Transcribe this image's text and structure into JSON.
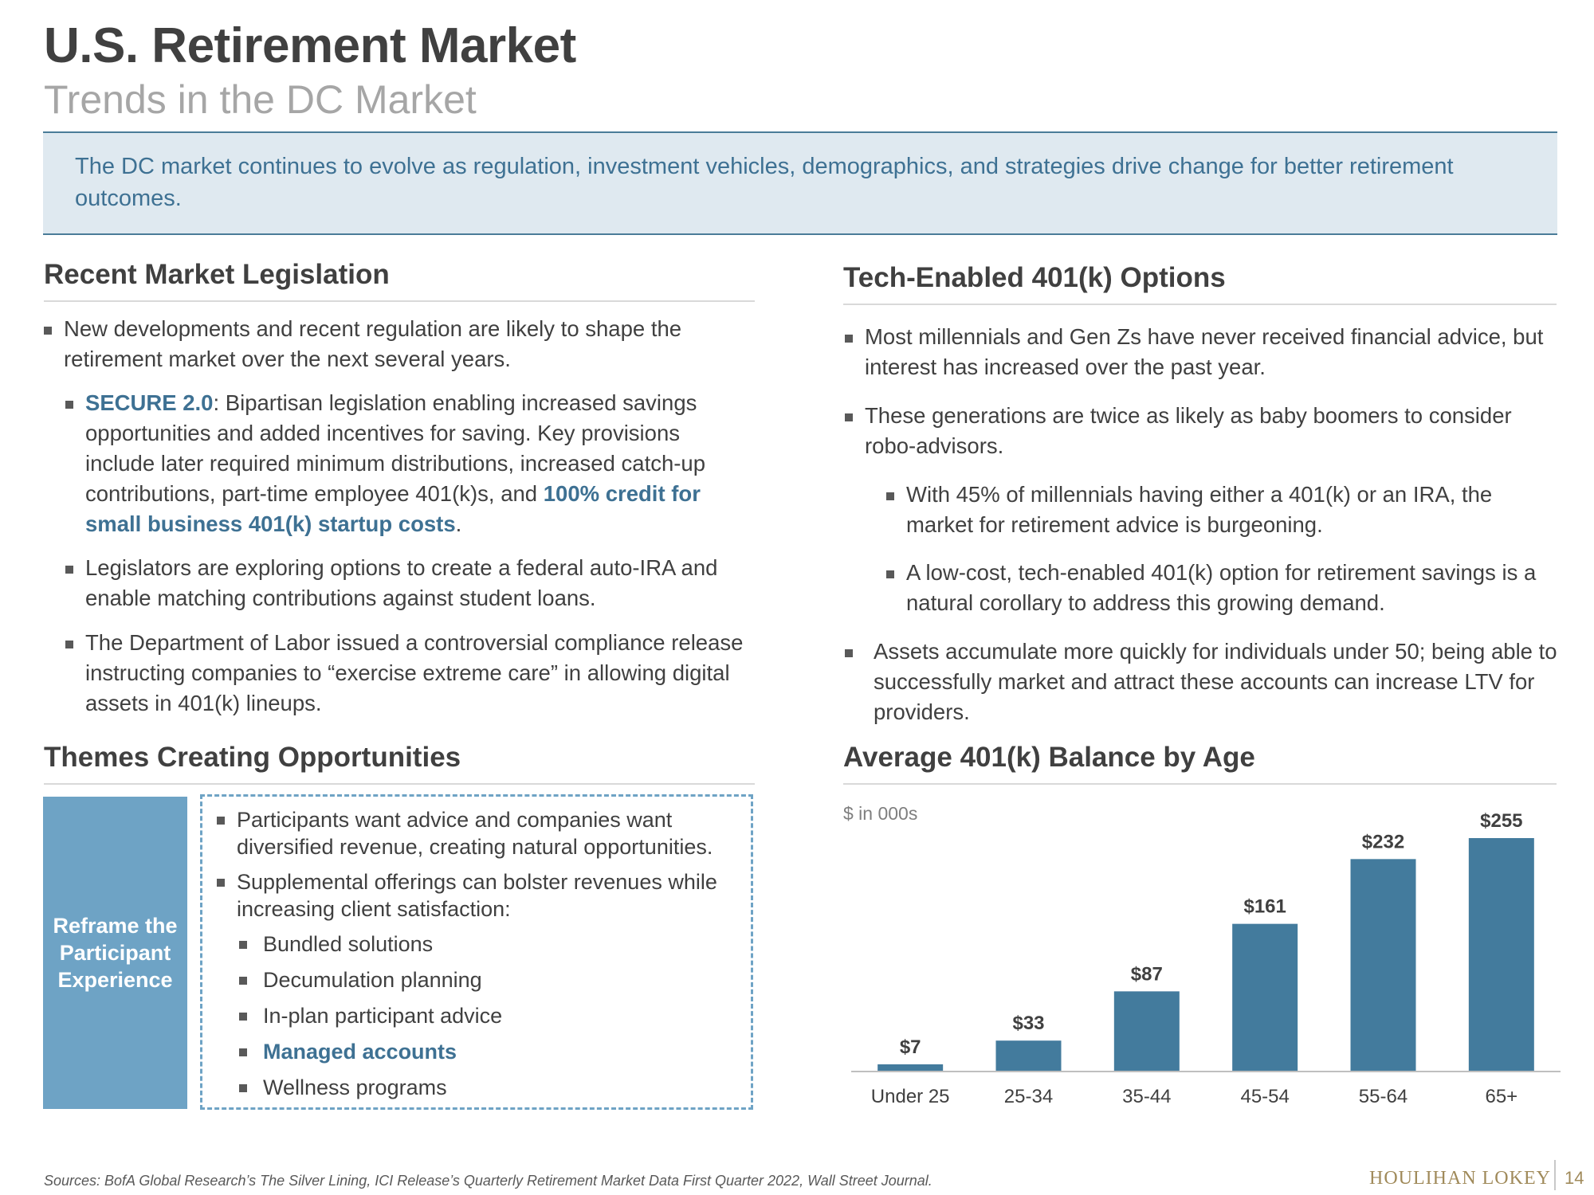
{
  "header": {
    "title": "U.S. Retirement Market",
    "subtitle": "Trends in the DC Market"
  },
  "banner": {
    "text": "The DC market continues to evolve as regulation, investment vehicles, demographics, and strategies drive change for better retirement outcomes."
  },
  "legislation": {
    "heading": "Recent Market Legislation",
    "b1": "New developments and recent regulation are likely to shape the retirement market over the next several years.",
    "b2_hl": "SECURE 2.0",
    "b2_text": ": Bipartisan legislation enabling increased savings opportunities and added incentives for saving. Key provisions include later required minimum distributions, increased catch-up contributions, part-time employee 401(k)s, and ",
    "b2_hl2": "100% credit for small business 401(k) startup costs",
    "b2_end": ".",
    "b3": "Legislators are exploring options to create a federal auto-IRA and enable matching contributions against student loans.",
    "b4": "The Department of Labor issued a controversial compliance release instructing companies to “exercise extreme care” in allowing digital assets in 401(k) lineups."
  },
  "tech": {
    "heading": "Tech-Enabled 401(k) Options",
    "b1": "Most millennials and Gen Zs have never received financial advice, but interest has increased over the past year.",
    "b2": "These generations are twice as likely as baby boomers to consider robo-advisors.",
    "b3": "With 45% of millennials having either a 401(k) or an IRA, the market for retirement advice is burgeoning.",
    "b4": "A low-cost, tech-enabled 401(k) option for retirement savings is a natural corollary to address this growing demand.",
    "b5": "Assets accumulate more quickly for individuals under 50; being able to successfully market and attract these accounts can increase LTV for providers."
  },
  "themes": {
    "heading": "Themes Creating Opportunities",
    "box_label": "Reframe the Participant Experience",
    "b1": "Participants want advice and companies want diversified revenue, creating natural opportunities.",
    "b2": "Supplemental offerings can bolster revenues while increasing client satisfaction:",
    "sub": [
      "Bundled solutions",
      "Decumulation planning",
      "In-plan participant advice",
      "Managed accounts",
      "Wellness programs"
    ]
  },
  "chart_heading": "Average 401(k) Balance by Age",
  "chart_data": {
    "type": "bar",
    "title": "Average 401(k) Balance by Age",
    "unit_note": "$ in 000s",
    "categories": [
      "Under 25",
      "25-34",
      "35-44",
      "45-54",
      "55-64",
      "65+"
    ],
    "values": [
      7,
      33,
      87,
      161,
      232,
      255
    ],
    "labels": [
      "$7",
      "$33",
      "$87",
      "$161",
      "$232",
      "$255"
    ],
    "ylim": [
      0,
      255
    ],
    "bar_color": "#437b9d"
  },
  "footer": {
    "sources": "Sources: BofA Global Research’s The Silver Lining, ICI Release’s Quarterly Retirement Market Data First Quarter 2022, Wall Street Journal.",
    "logo": "HOULIHAN LOKEY",
    "page": "14"
  }
}
